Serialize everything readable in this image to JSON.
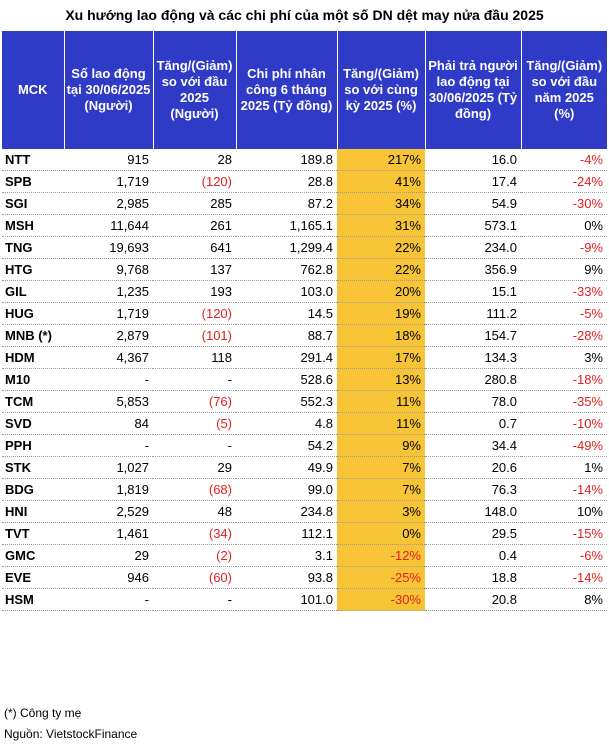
{
  "title": "Xu hướng lao động và các chi phí của một số DN dệt may nửa đầu 2025",
  "headers": [
    "MCK",
    "Số lao động tại 30/06/2025 (Người)",
    "Tăng/(Giảm) so với đầu 2025 (Người)",
    "Chi phí nhân công 6 tháng 2025 (Tỷ đồng)",
    "Tăng/(Giảm) so với cùng kỳ 2025 (%)",
    "Phải trả người lao động tại 30/06/2025 (Tỷ đồng)",
    "Tăng/(Giảm) so với đầu năm 2025 (%)"
  ],
  "rows": [
    {
      "mck": "NTT",
      "lao_dong": "915",
      "thay_doi_ld": "28",
      "chi_phi": "189.8",
      "tang_cp": "217%",
      "phai_tra": "16.0",
      "tang_pt": "-4%"
    },
    {
      "mck": "SPB",
      "lao_dong": "1,719",
      "thay_doi_ld": "(120)",
      "chi_phi": "28.8",
      "tang_cp": "41%",
      "phai_tra": "17.4",
      "tang_pt": "-24%"
    },
    {
      "mck": "SGI",
      "lao_dong": "2,985",
      "thay_doi_ld": "285",
      "chi_phi": "87.2",
      "tang_cp": "34%",
      "phai_tra": "54.9",
      "tang_pt": "-30%"
    },
    {
      "mck": "MSH",
      "lao_dong": "11,644",
      "thay_doi_ld": "261",
      "chi_phi": "1,165.1",
      "tang_cp": "31%",
      "phai_tra": "573.1",
      "tang_pt": "0%"
    },
    {
      "mck": "TNG",
      "lao_dong": "19,693",
      "thay_doi_ld": "641",
      "chi_phi": "1,299.4",
      "tang_cp": "22%",
      "phai_tra": "234.0",
      "tang_pt": "-9%"
    },
    {
      "mck": "HTG",
      "lao_dong": "9,768",
      "thay_doi_ld": "137",
      "chi_phi": "762.8",
      "tang_cp": "22%",
      "phai_tra": "356.9",
      "tang_pt": "9%"
    },
    {
      "mck": "GIL",
      "lao_dong": "1,235",
      "thay_doi_ld": "193",
      "chi_phi": "103.0",
      "tang_cp": "20%",
      "phai_tra": "15.1",
      "tang_pt": "-33%"
    },
    {
      "mck": "HUG",
      "lao_dong": "1,719",
      "thay_doi_ld": "(120)",
      "chi_phi": "14.5",
      "tang_cp": "19%",
      "phai_tra": "111.2",
      "tang_pt": "-5%"
    },
    {
      "mck": "MNB (*)",
      "lao_dong": "2,879",
      "thay_doi_ld": "(101)",
      "chi_phi": "88.7",
      "tang_cp": "18%",
      "phai_tra": "154.7",
      "tang_pt": "-28%"
    },
    {
      "mck": "HDM",
      "lao_dong": "4,367",
      "thay_doi_ld": "118",
      "chi_phi": "291.4",
      "tang_cp": "17%",
      "phai_tra": "134.3",
      "tang_pt": "3%"
    },
    {
      "mck": "M10",
      "lao_dong": "-",
      "thay_doi_ld": "-",
      "chi_phi": "528.6",
      "tang_cp": "13%",
      "phai_tra": "280.8",
      "tang_pt": "-18%"
    },
    {
      "mck": "TCM",
      "lao_dong": "5,853",
      "thay_doi_ld": "(76)",
      "chi_phi": "552.3",
      "tang_cp": "11%",
      "phai_tra": "78.0",
      "tang_pt": "-35%"
    },
    {
      "mck": "SVD",
      "lao_dong": "84",
      "thay_doi_ld": "(5)",
      "chi_phi": "4.8",
      "tang_cp": "11%",
      "phai_tra": "0.7",
      "tang_pt": "-10%"
    },
    {
      "mck": "PPH",
      "lao_dong": "-",
      "thay_doi_ld": "-",
      "chi_phi": "54.2",
      "tang_cp": "9%",
      "phai_tra": "34.4",
      "tang_pt": "-49%"
    },
    {
      "mck": "STK",
      "lao_dong": "1,027",
      "thay_doi_ld": "29",
      "chi_phi": "49.9",
      "tang_cp": "7%",
      "phai_tra": "20.6",
      "tang_pt": "1%"
    },
    {
      "mck": "BDG",
      "lao_dong": "1,819",
      "thay_doi_ld": "(68)",
      "chi_phi": "99.0",
      "tang_cp": "7%",
      "phai_tra": "76.3",
      "tang_pt": "-14%"
    },
    {
      "mck": "HNI",
      "lao_dong": "2,529",
      "thay_doi_ld": "48",
      "chi_phi": "234.8",
      "tang_cp": "3%",
      "phai_tra": "148.0",
      "tang_pt": "10%"
    },
    {
      "mck": "TVT",
      "lao_dong": "1,461",
      "thay_doi_ld": "(34)",
      "chi_phi": "112.1",
      "tang_cp": "0%",
      "phai_tra": "29.5",
      "tang_pt": "-15%"
    },
    {
      "mck": "GMC",
      "lao_dong": "29",
      "thay_doi_ld": "(2)",
      "chi_phi": "3.1",
      "tang_cp": "-12%",
      "phai_tra": "0.4",
      "tang_pt": "-6%"
    },
    {
      "mck": "EVE",
      "lao_dong": "946",
      "thay_doi_ld": "(60)",
      "chi_phi": "93.8",
      "tang_cp": "-25%",
      "phai_tra": "18.8",
      "tang_pt": "-14%"
    },
    {
      "mck": "HSM",
      "lao_dong": "-",
      "thay_doi_ld": "-",
      "chi_phi": "101.0",
      "tang_cp": "-30%",
      "phai_tra": "20.8",
      "tang_pt": "8%"
    }
  ],
  "footnote": "(*) Công ty mẹ",
  "source": "Nguồn: VietstockFinance",
  "colors": {
    "header_bg": "#2f3bc6",
    "highlight": "#f7c435",
    "negative": "#e02020"
  }
}
